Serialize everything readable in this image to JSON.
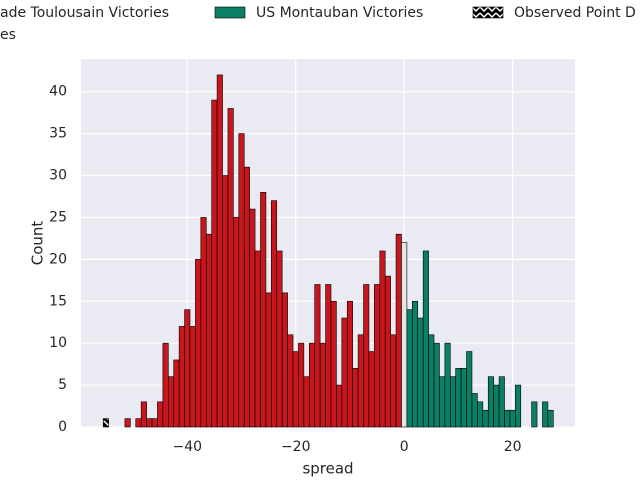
{
  "chart_data": {
    "type": "histogram",
    "xlabel": "spread",
    "ylabel": "Count",
    "xlim": [
      -59.6,
      31.5
    ],
    "ylim": [
      0,
      43.9
    ],
    "xticks": [
      {
        "value": -40,
        "label": "−40"
      },
      {
        "value": -20,
        "label": "−20"
      },
      0,
      20
    ],
    "yticks": [
      0,
      5,
      10,
      15,
      20,
      25,
      30,
      35,
      40
    ],
    "grid": true,
    "series": [
      {
        "name": "ade Toulousain Victories",
        "color": "#c8161d",
        "bins": [
          -51.5,
          -50.5,
          -49.5,
          -48.5,
          -47.5,
          -46.5,
          -45.5,
          -44.5,
          -43.5,
          -42.5,
          -41.5,
          -40.5,
          -39.5,
          -38.5,
          -37.5,
          -36.5,
          -35.5,
          -34.5,
          -33.5,
          -32.5,
          -31.5,
          -30.5,
          -29.5,
          -28.5,
          -27.5,
          -26.5,
          -25.5,
          -24.5,
          -23.5,
          -22.5,
          -21.5,
          -20.5,
          -19.5,
          -18.5,
          -17.5,
          -16.5,
          -15.5,
          -14.5,
          -13.5,
          -12.5,
          -11.5,
          -10.5,
          -9.5,
          -8.5,
          -7.5,
          -6.5,
          -5.5,
          -4.5,
          -3.5,
          -2.5,
          -1.5,
          -0.5
        ],
        "values": [
          1,
          0,
          1,
          3,
          1,
          1,
          3,
          10,
          6,
          8,
          12,
          14,
          12,
          20,
          25,
          23,
          39,
          42,
          30,
          38,
          25,
          35,
          31,
          26,
          21,
          28,
          16,
          27,
          21,
          16,
          11,
          9,
          10,
          6,
          10,
          17,
          10,
          17,
          15,
          5,
          13,
          15,
          7,
          11,
          17,
          9,
          17,
          21,
          18,
          11,
          23
        ]
      },
      {
        "name": "es",
        "color": "#e6e6e6",
        "bins": [
          -0.5,
          0.5
        ],
        "values": [
          22
        ]
      },
      {
        "name": "US Montauban Victories",
        "color": "#0b7f66",
        "bins": [
          0.5,
          1.5,
          2.5,
          3.5,
          4.5,
          5.5,
          6.5,
          7.5,
          8.5,
          9.5,
          10.5,
          11.5,
          12.5,
          13.5,
          14.5,
          15.5,
          16.5,
          17.5,
          18.5,
          19.5,
          20.5,
          21.5,
          22.5,
          23.5,
          24.5,
          25.5,
          26.5,
          27.5
        ],
        "values": [
          14,
          15,
          13,
          21,
          11,
          10,
          6,
          10,
          6,
          7,
          7,
          9,
          4,
          3,
          2,
          6,
          5,
          6,
          2,
          2,
          5,
          0,
          0,
          3,
          0,
          3,
          2
        ]
      },
      {
        "name": "Observed Point D",
        "color": "#000000",
        "hatch": true,
        "bins": [
          -55.5,
          -54.5
        ],
        "values": [
          1
        ]
      }
    ]
  }
}
